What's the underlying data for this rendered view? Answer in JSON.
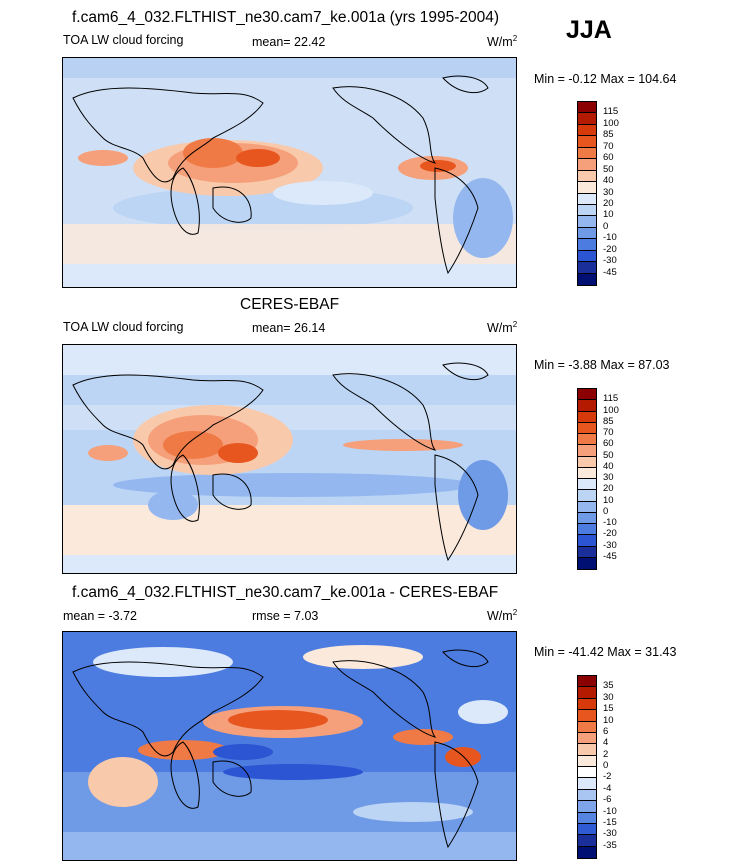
{
  "season": "JJA",
  "chart_data": [
    {
      "type": "heatmap",
      "title": "f.cam6_4_032.FLTHIST_ne30.cam7_ke.001a (yrs 1995-2004)",
      "left_label": "TOA LW cloud forcing",
      "stat_text": "mean=  22.42",
      "units": "W/m",
      "units_sup": "2",
      "minmax": "Min =  -0.12 Max = 104.64",
      "levels": [
        "115",
        "100",
        "85",
        "70",
        "60",
        "50",
        "40",
        "30",
        "20",
        "10",
        "0",
        "-10",
        "-20",
        "-30",
        "-45"
      ],
      "colors": [
        "#8b0000",
        "#b31a00",
        "#d63a0a",
        "#e8561f",
        "#f07a45",
        "#f5a07a",
        "#f9c9ab",
        "#fbe9dc",
        "#dbe9fa",
        "#bcd5f5",
        "#93b7ee",
        "#6f9ae6",
        "#4d7ce0",
        "#2b55d2",
        "#1a2f9a",
        "#000f72"
      ]
    },
    {
      "type": "heatmap",
      "title": "CERES-EBAF",
      "left_label": "TOA LW cloud forcing",
      "stat_text": "mean=  26.14",
      "units": "W/m",
      "units_sup": "2",
      "minmax": "Min =  -3.88 Max = 87.03",
      "levels": [
        "115",
        "100",
        "85",
        "70",
        "60",
        "50",
        "40",
        "30",
        "20",
        "10",
        "0",
        "-10",
        "-20",
        "-30",
        "-45"
      ],
      "colors": [
        "#8b0000",
        "#b31a00",
        "#d63a0a",
        "#e8561f",
        "#f07a45",
        "#f5a07a",
        "#f9c9ab",
        "#fbe9dc",
        "#dbe9fa",
        "#bcd5f5",
        "#93b7ee",
        "#6f9ae6",
        "#4d7ce0",
        "#2b55d2",
        "#1a2f9a",
        "#000f72"
      ]
    },
    {
      "type": "heatmap",
      "title": "f.cam6_4_032.FLTHIST_ne30.cam7_ke.001a - CERES-EBAF",
      "left_label": "mean =  -3.72",
      "stat_text": "rmse =   7.03",
      "units": "W/m",
      "units_sup": "2",
      "minmax": "Min = -41.42 Max =  31.43",
      "levels": [
        "35",
        "30",
        "15",
        "10",
        "6",
        "4",
        "2",
        "0",
        "-2",
        "-4",
        "-6",
        "-10",
        "-15",
        "-30",
        "-35"
      ],
      "colors": [
        "#8b0000",
        "#b31a00",
        "#d63a0a",
        "#e8561f",
        "#f07a45",
        "#f5a07a",
        "#f9c9ab",
        "#fbe9dc",
        "#ffffff",
        "#dbe9fa",
        "#a9c6f2",
        "#7ea5ea",
        "#5684e1",
        "#2f5bd5",
        "#1a2f9a",
        "#000f72"
      ]
    }
  ]
}
